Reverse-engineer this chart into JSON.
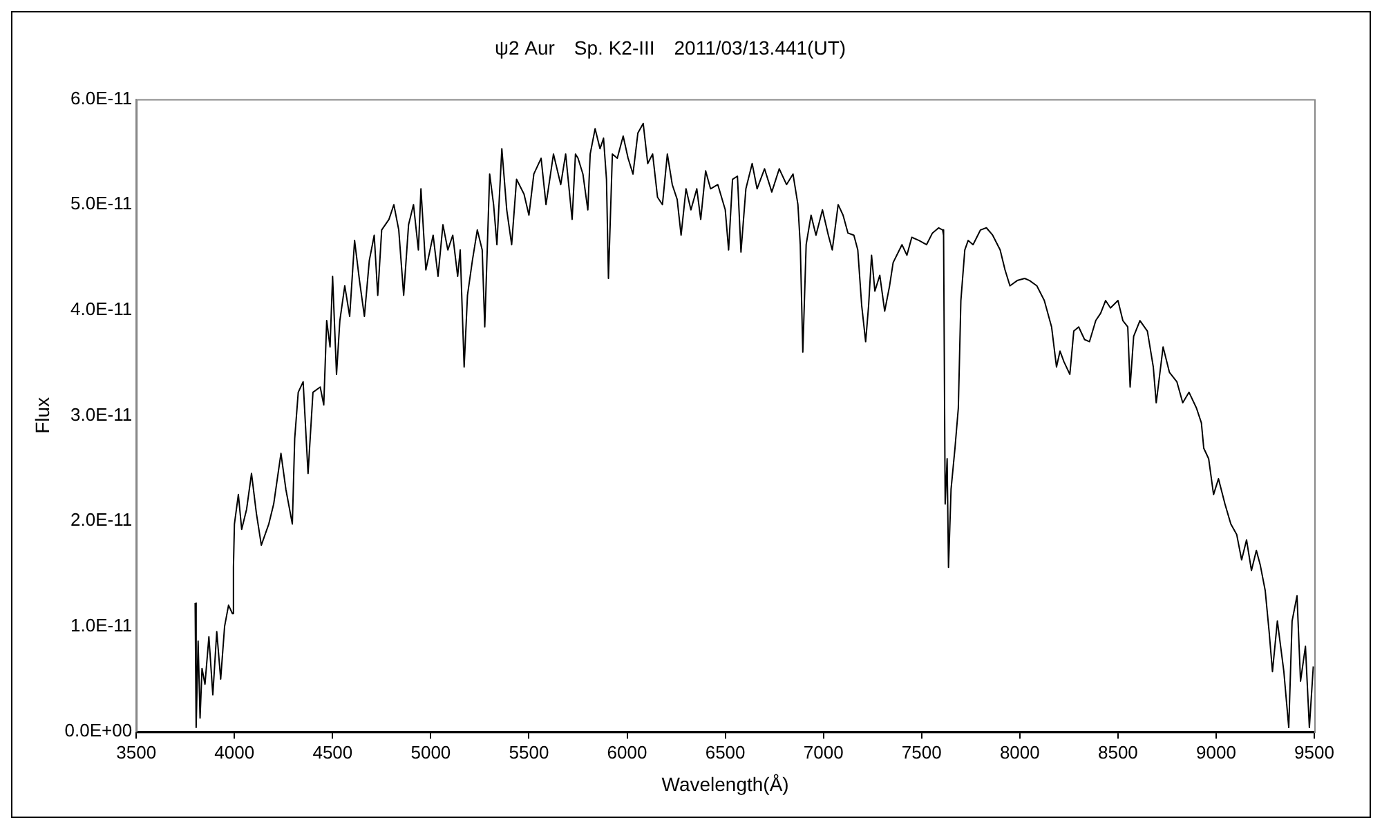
{
  "chart_data": {
    "type": "line",
    "title": "ψ2 Aur　Sp. K2-III　2011/03/13.441(UT)",
    "xlabel": "Wavelength(Å)",
    "ylabel": "Flux",
    "xlim": [
      3500,
      9500
    ],
    "xticks": [
      3500,
      4000,
      4500,
      5000,
      5500,
      6000,
      6500,
      7000,
      7500,
      8000,
      8500,
      9000,
      9500
    ],
    "ylim": [
      0,
      6e-11
    ],
    "yticks": [
      {
        "value": 0,
        "label": "0.0E+00"
      },
      {
        "value": 1e-11,
        "label": "1.0E-11"
      },
      {
        "value": 2e-11,
        "label": "2.0E-11"
      },
      {
        "value": 3e-11,
        "label": "3.0E-11"
      },
      {
        "value": 4e-11,
        "label": "4.0E-11"
      },
      {
        "value": 5e-11,
        "label": "5.0E-11"
      },
      {
        "value": 6e-11,
        "label": "6.0E-11"
      }
    ],
    "grid": false,
    "legend": false,
    "marker": "none",
    "line_style": "solid",
    "series": [
      {
        "color": "#000000",
        "x": [
          3800,
          3805,
          3815,
          3825,
          3835,
          3850,
          3870,
          3890,
          3910,
          3930,
          3950,
          3970,
          3990,
          3995,
          4000,
          4020,
          4037,
          4062,
          4087,
          4112,
          4137,
          4175,
          4200,
          4237,
          4262,
          4295,
          4307,
          4325,
          4350,
          4375,
          4400,
          4437,
          4455,
          4470,
          4487,
          4500,
          4520,
          4537,
          4562,
          4587,
          4612,
          4637,
          4662,
          4687,
          4712,
          4730,
          4750,
          4787,
          4812,
          4837,
          4862,
          4887,
          4912,
          4937,
          4950,
          4975,
          5012,
          5037,
          5062,
          5087,
          5112,
          5137,
          5150,
          5170,
          5187,
          5212,
          5237,
          5262,
          5275,
          5300,
          5320,
          5337,
          5362,
          5387,
          5412,
          5437,
          5475,
          5500,
          5525,
          5562,
          5587,
          5625,
          5662,
          5687,
          5720,
          5737,
          5750,
          5775,
          5800,
          5812,
          5837,
          5862,
          5880,
          5895,
          5905,
          5925,
          5950,
          5980,
          6005,
          6030,
          6055,
          6082,
          6105,
          6130,
          6155,
          6180,
          6205,
          6230,
          6255,
          6275,
          6300,
          6325,
          6355,
          6375,
          6400,
          6425,
          6462,
          6500,
          6517,
          6537,
          6562,
          6580,
          6605,
          6637,
          6662,
          6700,
          6737,
          6775,
          6812,
          6845,
          6870,
          6882,
          6895,
          6912,
          6937,
          6962,
          6995,
          7025,
          7045,
          7075,
          7100,
          7125,
          7155,
          7175,
          7195,
          7215,
          7230,
          7245,
          7262,
          7287,
          7312,
          7337,
          7355,
          7400,
          7425,
          7450,
          7487,
          7525,
          7555,
          7587,
          7607,
          7612,
          7620,
          7630,
          7637,
          7650,
          7670,
          7687,
          7700,
          7720,
          7737,
          7762,
          7800,
          7830,
          7862,
          7900,
          7925,
          7950,
          7987,
          8025,
          8050,
          8087,
          8125,
          8162,
          8187,
          8205,
          8225,
          8255,
          8275,
          8300,
          8330,
          8355,
          8387,
          8412,
          8437,
          8462,
          8500,
          8525,
          8550,
          8562,
          8580,
          8612,
          8650,
          8680,
          8695,
          8730,
          8762,
          8800,
          8830,
          8862,
          8900,
          8925,
          8937,
          8962,
          8987,
          9012,
          9045,
          9075,
          9105,
          9130,
          9155,
          9180,
          9205,
          9225,
          9250,
          9270,
          9287,
          9312,
          9345,
          9370,
          9387,
          9412,
          9430,
          9455,
          9475,
          9495
        ],
        "values": [
          1.22e-11,
          4e-13,
          8.6e-12,
          1.3e-12,
          6e-12,
          4.5e-12,
          9e-12,
          3.5e-12,
          9.5e-12,
          5e-12,
          1e-11,
          1.2e-11,
          1.12e-11,
          1.56e-11,
          1.97e-11,
          2.25e-11,
          1.92e-11,
          2.11e-11,
          2.45e-11,
          2.07e-11,
          1.77e-11,
          1.97e-11,
          2.16e-11,
          2.64e-11,
          2.3e-11,
          1.97e-11,
          2.78e-11,
          3.22e-11,
          3.32e-11,
          2.45e-11,
          3.22e-11,
          3.27e-11,
          3.1e-11,
          3.9e-11,
          3.65e-11,
          4.32e-11,
          3.39e-11,
          3.9e-11,
          4.23e-11,
          3.94e-11,
          4.66e-11,
          4.28e-11,
          3.94e-11,
          4.47e-11,
          4.71e-11,
          4.14e-11,
          4.76e-11,
          4.86e-11,
          5e-11,
          4.76e-11,
          4.14e-11,
          4.81e-11,
          5e-11,
          4.57e-11,
          5.15e-11,
          4.38e-11,
          4.71e-11,
          4.32e-11,
          4.81e-11,
          4.57e-11,
          4.71e-11,
          4.32e-11,
          4.57e-11,
          3.46e-11,
          4.14e-11,
          4.47e-11,
          4.76e-11,
          4.57e-11,
          3.84e-11,
          5.29e-11,
          5e-11,
          4.62e-11,
          5.53e-11,
          4.95e-11,
          4.62e-11,
          5.24e-11,
          5.1e-11,
          4.9e-11,
          5.29e-11,
          5.44e-11,
          5e-11,
          5.48e-11,
          5.19e-11,
          5.48e-11,
          4.86e-11,
          5.48e-11,
          5.44e-11,
          5.29e-11,
          4.95e-11,
          5.48e-11,
          5.72e-11,
          5.53e-11,
          5.63e-11,
          5.24e-11,
          4.3e-11,
          5.48e-11,
          5.44e-11,
          5.65e-11,
          5.44e-11,
          5.29e-11,
          5.68e-11,
          5.77e-11,
          5.39e-11,
          5.48e-11,
          5.07e-11,
          5e-11,
          5.48e-11,
          5.19e-11,
          5.05e-11,
          4.71e-11,
          5.15e-11,
          4.95e-11,
          5.15e-11,
          4.86e-11,
          5.32e-11,
          5.15e-11,
          5.19e-11,
          4.95e-11,
          4.57e-11,
          5.24e-11,
          5.27e-11,
          4.55e-11,
          5.15e-11,
          5.39e-11,
          5.15e-11,
          5.34e-11,
          5.12e-11,
          5.34e-11,
          5.19e-11,
          5.29e-11,
          5e-11,
          4.62e-11,
          3.6e-11,
          4.62e-11,
          4.9e-11,
          4.71e-11,
          4.95e-11,
          4.71e-11,
          4.57e-11,
          5e-11,
          4.9e-11,
          4.73e-11,
          4.71e-11,
          4.57e-11,
          4.04e-11,
          3.7e-11,
          4.04e-11,
          4.52e-11,
          4.18e-11,
          4.33e-11,
          3.99e-11,
          4.23e-11,
          4.45e-11,
          4.62e-11,
          4.52e-11,
          4.69e-11,
          4.66e-11,
          4.62e-11,
          4.73e-11,
          4.78e-11,
          4.76e-11,
          4.71e-11,
          2.16e-11,
          2.59e-11,
          1.56e-11,
          2.3e-11,
          2.69e-11,
          3.07e-11,
          4.09e-11,
          4.57e-11,
          4.66e-11,
          4.62e-11,
          4.76e-11,
          4.78e-11,
          4.71e-11,
          4.57e-11,
          4.38e-11,
          4.23e-11,
          4.28e-11,
          4.3e-11,
          4.28e-11,
          4.23e-11,
          4.09e-11,
          3.84e-11,
          3.46e-11,
          3.61e-11,
          3.51e-11,
          3.39e-11,
          3.8e-11,
          3.84e-11,
          3.72e-11,
          3.7e-11,
          3.9e-11,
          3.97e-11,
          4.09e-11,
          4.02e-11,
          4.09e-11,
          3.9e-11,
          3.84e-11,
          3.27e-11,
          3.75e-11,
          3.9e-11,
          3.8e-11,
          3.46e-11,
          3.12e-11,
          3.65e-11,
          3.41e-11,
          3.32e-11,
          3.12e-11,
          3.22e-11,
          3.07e-11,
          2.93e-11,
          2.69e-11,
          2.59e-11,
          2.25e-11,
          2.4e-11,
          2.16e-11,
          1.97e-11,
          1.87e-11,
          1.63e-11,
          1.82e-11,
          1.53e-11,
          1.72e-11,
          1.58e-11,
          1.34e-11,
          9.5e-12,
          5.7e-12,
          1.05e-11,
          5.7e-12,
          4e-13,
          1.05e-11,
          1.29e-11,
          4.8e-12,
          8.1e-12,
          4e-13,
          6.2e-12
        ]
      }
    ]
  }
}
